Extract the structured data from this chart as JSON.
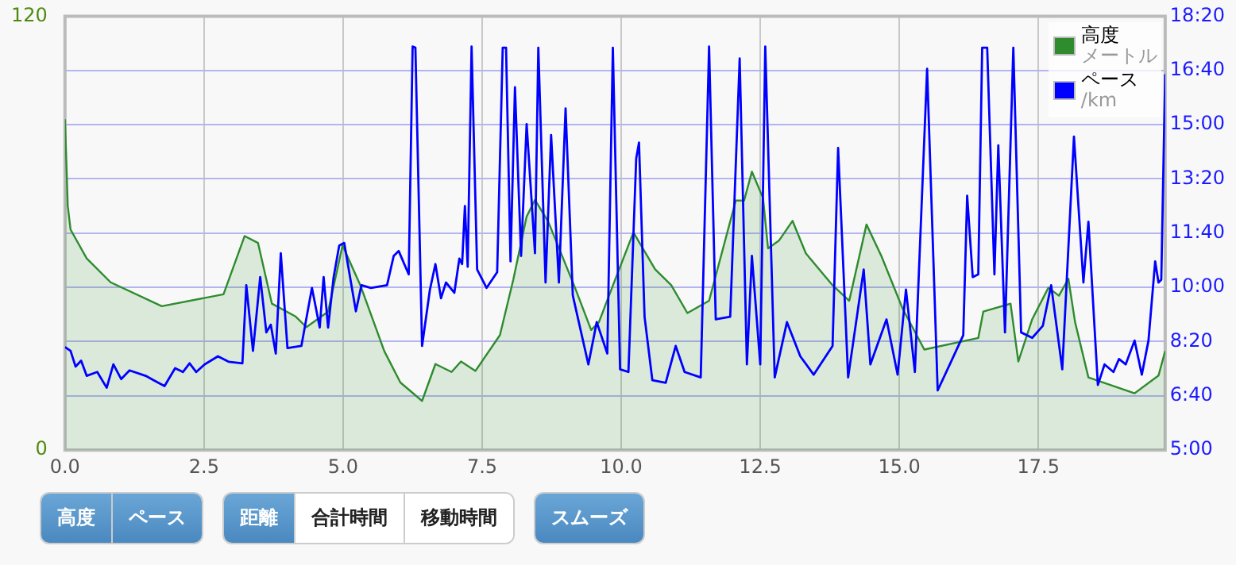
{
  "chart_data": {
    "type": "line",
    "xlim": [
      0,
      19.78
    ],
    "xticks": [
      {
        "value": 0,
        "label": "0.0"
      },
      {
        "value": 2.5,
        "label": "2.5"
      },
      {
        "value": 5,
        "label": "5.0"
      },
      {
        "value": 7.5,
        "label": "7.5"
      },
      {
        "value": 10,
        "label": "10.0"
      },
      {
        "value": 12.5,
        "label": "12.5"
      },
      {
        "value": 15,
        "label": "15.0"
      },
      {
        "value": 17.5,
        "label": "17.5"
      }
    ],
    "ylim": [
      0,
      120
    ],
    "yticks": [
      0,
      120
    ],
    "y2lim": [
      300,
      1100
    ],
    "y2ticks": [
      {
        "value": 300,
        "label": "5:00"
      },
      {
        "value": 400,
        "label": "6:40"
      },
      {
        "value": 500,
        "label": "8:20"
      },
      {
        "value": 600,
        "label": "10:00"
      },
      {
        "value": 700,
        "label": "11:40"
      },
      {
        "value": 800,
        "label": "13:20"
      },
      {
        "value": 900,
        "label": "15:00"
      },
      {
        "value": 1000,
        "label": "16:40"
      },
      {
        "value": 1100,
        "label": "18:20"
      }
    ],
    "grid": true,
    "legend": "top right",
    "marker": "none",
    "series": [
      {
        "name": "高度",
        "type": "area",
        "color": "#2e8b2e",
        "x": [
          0,
          0.05,
          0.1,
          0.39,
          0.82,
          1.74,
          2.85,
          3.23,
          3.47,
          3.72,
          4.15,
          4.34,
          4.73,
          4.99,
          5.31,
          5.74,
          6.03,
          6.42,
          6.66,
          6.95,
          7.12,
          7.38,
          7.82,
          8.06,
          8.3,
          8.45,
          8.69,
          9.17,
          9.46,
          9.6,
          9.89,
          10.22,
          10.61,
          10.9,
          11.19,
          11.58,
          12.06,
          12.21,
          12.35,
          12.55,
          12.64,
          12.84,
          13.08,
          13.32,
          13.8,
          14.1,
          14.41,
          14.68,
          15.06,
          15.45,
          16.42,
          16.51,
          17.0,
          17.14,
          17.39,
          17.68,
          17.87,
          18.04,
          18.16,
          18.4,
          19.23,
          19.66,
          19.78
        ],
        "values": [
          91.5,
          67.5,
          61,
          53,
          46.4,
          39.8,
          43.1,
          59.2,
          57.3,
          40.5,
          36.9,
          34,
          38.3,
          56.6,
          45.6,
          27.4,
          18.7,
          13.6,
          23.8,
          21.6,
          24.5,
          21.9,
          31.8,
          47.1,
          64.6,
          69.2,
          63.1,
          44.9,
          33.2,
          35.4,
          47.1,
          60.2,
          50,
          45.6,
          37.9,
          41.3,
          69,
          69,
          77,
          69.7,
          55.8,
          58,
          63.4,
          54.4,
          45.6,
          41.3,
          62.4,
          53.6,
          39.1,
          27.8,
          31,
          38.3,
          40.5,
          24.5,
          36.2,
          44.9,
          42.7,
          47.4,
          35.4,
          20.1,
          15.7,
          20.6,
          27.4
        ]
      },
      {
        "name": "ペース",
        "axis": "y2",
        "color": "#0000ff",
        "x": [
          0,
          0.1,
          0.19,
          0.29,
          0.39,
          0.58,
          0.75,
          0.87,
          1.01,
          1.16,
          1.45,
          1.59,
          1.79,
          1.98,
          2.12,
          2.24,
          2.36,
          2.51,
          2.75,
          2.94,
          3.19,
          3.26,
          3.38,
          3.51,
          3.62,
          3.7,
          3.79,
          3.88,
          4.0,
          4.25,
          4.44,
          4.58,
          4.65,
          4.73,
          4.83,
          4.93,
          5.02,
          5.23,
          5.33,
          5.5,
          5.79,
          5.91,
          6.0,
          6.18,
          6.25,
          6.3,
          6.42,
          6.56,
          6.66,
          6.76,
          6.85,
          7.0,
          7.09,
          7.14,
          7.19,
          7.24,
          7.31,
          7.41,
          7.58,
          7.77,
          7.87,
          7.93,
          8.01,
          8.09,
          8.2,
          8.3,
          8.45,
          8.51,
          8.64,
          8.74,
          8.88,
          9.0,
          9.13,
          9.41,
          9.56,
          9.75,
          9.85,
          9.98,
          10.13,
          10.27,
          10.32,
          10.42,
          10.56,
          10.8,
          10.98,
          11.14,
          11.43,
          11.58,
          11.7,
          11.96,
          12.13,
          12.26,
          12.35,
          12.5,
          12.59,
          12.76,
          12.98,
          13.22,
          13.46,
          13.8,
          13.9,
          14.08,
          14.36,
          14.48,
          14.77,
          14.97,
          15.12,
          15.28,
          15.5,
          15.69,
          15.93,
          16.15,
          16.22,
          16.32,
          16.42,
          16.49,
          16.58,
          16.71,
          16.78,
          16.9,
          17.05,
          17.19,
          17.39,
          17.58,
          17.73,
          17.93,
          18.14,
          18.31,
          18.4,
          18.57,
          18.69,
          18.85,
          18.95,
          19.07,
          19.23,
          19.36,
          19.48,
          19.6,
          19.66,
          19.71,
          19.78
        ],
        "values": [
          490,
          483,
          454,
          465,
          437,
          444,
          415,
          458,
          431,
          447,
          437,
          429,
          418,
          451,
          444,
          460,
          444,
          458,
          473,
          463,
          460,
          604,
          483,
          619,
          517,
          531,
          478,
          663,
          488,
          492,
          599,
          526,
          619,
          526,
          619,
          677,
          682,
          556,
          604,
          599,
          604,
          658,
          667,
          624,
          1044,
          1042,
          492,
          595,
          643,
          580,
          609,
          590,
          653,
          643,
          750,
          638,
          1044,
          633,
          599,
          628,
          1042,
          1042,
          648,
          969,
          658,
          901,
          663,
          1042,
          609,
          881,
          609,
          930,
          585,
          458,
          536,
          478,
          1042,
          449,
          444,
          838,
          867,
          546,
          429,
          424,
          492,
          444,
          434,
          1044,
          541,
          546,
          1022,
          458,
          658,
          458,
          1044,
          434,
          536,
          473,
          439,
          492,
          857,
          434,
          633,
          458,
          541,
          439,
          596,
          444,
          1003,
          410,
          463,
          512,
          769,
          619,
          624,
          1042,
          1042,
          624,
          862,
          517,
          1042,
          517,
          507,
          529,
          604,
          449,
          878,
          609,
          721,
          420,
          458,
          444,
          468,
          458,
          502,
          439,
          502,
          648,
          609,
          614,
          993
        ]
      }
    ],
    "annotations": [
      "高度",
      "ペース",
      "距離",
      "合計時間",
      "移動時間",
      "スムーズ",
      "メートル",
      "/km"
    ]
  }
}
